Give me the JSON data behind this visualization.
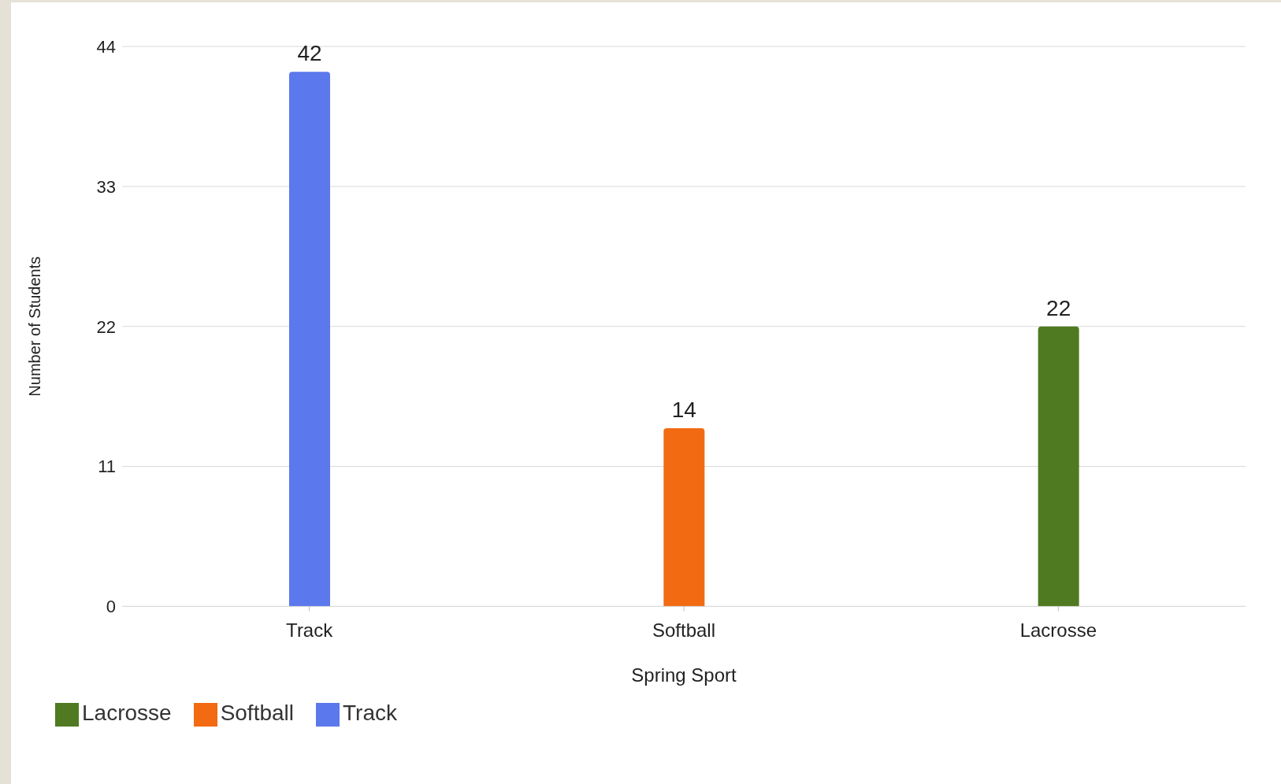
{
  "chart_data": {
    "type": "bar",
    "xlabel": "Spring Sport",
    "ylabel": "Number of Students",
    "categories": [
      "Track",
      "Softball",
      "Lacrosse"
    ],
    "series": [
      {
        "name": "Track",
        "color": "#5b78ec",
        "values": [
          42,
          null,
          null
        ]
      },
      {
        "name": "Softball",
        "color": "#f26a12",
        "values": [
          null,
          14,
          null
        ]
      },
      {
        "name": "Lacrosse",
        "color": "#4f7a21",
        "values": [
          null,
          null,
          22
        ]
      }
    ],
    "stacked": true,
    "ylim": [
      0,
      44
    ],
    "yticks": [
      0,
      11,
      22,
      33,
      44
    ],
    "grid": "y",
    "data_labels": true,
    "legend": "bottom left"
  }
}
